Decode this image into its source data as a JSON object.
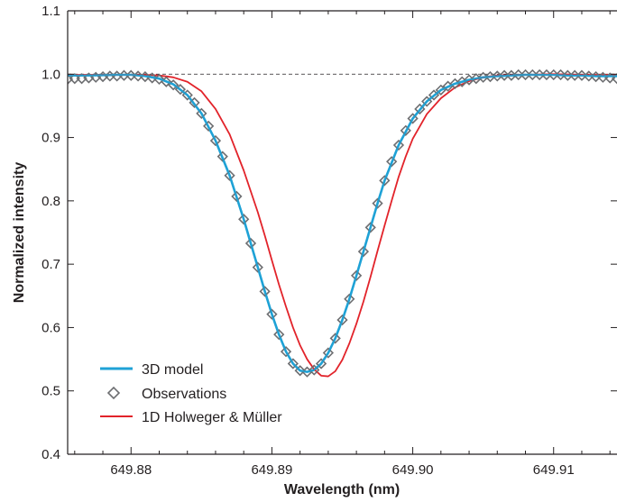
{
  "chart_data": {
    "type": "line",
    "xlabel": "Wavelength (nm)",
    "ylabel": "Normalized intensity",
    "xlim": [
      649.8755,
      649.9145
    ],
    "ylim": [
      0.4,
      1.1
    ],
    "x_ticks": [
      649.88,
      649.89,
      649.9,
      649.91
    ],
    "x_tick_labels": [
      "649.88",
      "649.89",
      "649.90",
      "649.91"
    ],
    "y_ticks": [
      0.4,
      0.5,
      0.6,
      0.7,
      0.8,
      0.9,
      1.0,
      1.1
    ],
    "y_tick_labels": [
      "0.4",
      "0.5",
      "0.6",
      "0.7",
      "0.8",
      "0.9",
      "1.0",
      "1.1"
    ],
    "reference_line": 1.0,
    "grid": false,
    "legend_position": "bottom-left",
    "colors": {
      "model3d": "#1fa2d6",
      "observations": "#6d6e71",
      "holweger": "#e2232a",
      "axis": "#231f20"
    },
    "series": [
      {
        "name": "3D model",
        "style": "line",
        "x": [
          649.8755,
          649.877,
          649.879,
          649.88,
          649.881,
          649.882,
          649.883,
          649.884,
          649.885,
          649.886,
          649.887,
          649.888,
          649.8885,
          649.889,
          649.8895,
          649.89,
          649.8905,
          649.891,
          649.8915,
          649.892,
          649.8925,
          649.893,
          649.8935,
          649.894,
          649.8945,
          649.895,
          649.8955,
          649.896,
          649.8965,
          649.897,
          649.8975,
          649.898,
          649.899,
          649.9,
          649.901,
          649.902,
          649.903,
          649.904,
          649.905,
          649.906,
          649.907,
          649.908,
          649.909,
          649.91,
          649.911,
          649.912,
          649.913,
          649.9145
        ],
        "y": [
          0.998,
          0.998,
          0.999,
          0.999,
          0.997,
          0.993,
          0.984,
          0.967,
          0.938,
          0.895,
          0.84,
          0.771,
          0.733,
          0.695,
          0.657,
          0.621,
          0.589,
          0.562,
          0.543,
          0.532,
          0.53,
          0.533,
          0.543,
          0.56,
          0.583,
          0.612,
          0.645,
          0.682,
          0.72,
          0.758,
          0.796,
          0.832,
          0.888,
          0.93,
          0.957,
          0.975,
          0.985,
          0.991,
          0.995,
          0.997,
          0.998,
          0.999,
          0.999,
          0.999,
          0.998,
          0.998,
          0.997,
          0.997
        ]
      },
      {
        "name": "Observations",
        "style": "markers",
        "x": [
          649.8755,
          649.876,
          649.8765,
          649.877,
          649.8775,
          649.878,
          649.8785,
          649.879,
          649.8795,
          649.88,
          649.8805,
          649.881,
          649.8815,
          649.882,
          649.8825,
          649.883,
          649.8835,
          649.884,
          649.8845,
          649.885,
          649.8855,
          649.886,
          649.8865,
          649.887,
          649.8875,
          649.888,
          649.8885,
          649.889,
          649.8895,
          649.89,
          649.8905,
          649.891,
          649.8915,
          649.892,
          649.8925,
          649.893,
          649.8935,
          649.894,
          649.8945,
          649.895,
          649.8955,
          649.896,
          649.8965,
          649.897,
          649.8975,
          649.898,
          649.8985,
          649.899,
          649.8995,
          649.9,
          649.9005,
          649.901,
          649.9015,
          649.902,
          649.9025,
          649.903,
          649.9035,
          649.904,
          649.9045,
          649.905,
          649.9055,
          649.906,
          649.9065,
          649.907,
          649.9075,
          649.908,
          649.9085,
          649.909,
          649.9095,
          649.91,
          649.9105,
          649.911,
          649.9115,
          649.912,
          649.9125,
          649.913,
          649.9135,
          649.914,
          649.9145
        ],
        "y": [
          0.992,
          0.993,
          0.993,
          0.994,
          0.995,
          0.996,
          0.997,
          0.997,
          0.998,
          0.998,
          0.997,
          0.996,
          0.994,
          0.992,
          0.988,
          0.983,
          0.976,
          0.967,
          0.955,
          0.938,
          0.918,
          0.895,
          0.87,
          0.84,
          0.807,
          0.771,
          0.733,
          0.695,
          0.657,
          0.621,
          0.589,
          0.562,
          0.543,
          0.532,
          0.53,
          0.533,
          0.543,
          0.56,
          0.583,
          0.612,
          0.645,
          0.682,
          0.72,
          0.758,
          0.796,
          0.832,
          0.862,
          0.888,
          0.911,
          0.93,
          0.945,
          0.957,
          0.967,
          0.975,
          0.981,
          0.985,
          0.988,
          0.991,
          0.993,
          0.995,
          0.996,
          0.997,
          0.998,
          0.998,
          0.999,
          0.999,
          0.999,
          0.999,
          0.999,
          0.999,
          0.999,
          0.998,
          0.998,
          0.998,
          0.997,
          0.996,
          0.995,
          0.994,
          0.993
        ]
      },
      {
        "name": "1D Holweger & Müller",
        "style": "line",
        "x": [
          649.8755,
          649.877,
          649.879,
          649.88,
          649.881,
          649.882,
          649.883,
          649.884,
          649.885,
          649.886,
          649.887,
          649.888,
          649.889,
          649.8895,
          649.89,
          649.8905,
          649.891,
          649.8915,
          649.892,
          649.8925,
          649.893,
          649.8935,
          649.894,
          649.8945,
          649.895,
          649.8955,
          649.896,
          649.8965,
          649.897,
          649.8975,
          649.898,
          649.8985,
          649.899,
          649.8995,
          649.9,
          649.901,
          649.902,
          649.903,
          649.904,
          649.905,
          649.906,
          649.908,
          649.91,
          649.912,
          649.914,
          649.9145
        ],
        "y": [
          0.999,
          0.999,
          0.999,
          0.999,
          0.999,
          0.998,
          0.995,
          0.988,
          0.973,
          0.945,
          0.905,
          0.848,
          0.782,
          0.745,
          0.706,
          0.668,
          0.633,
          0.6,
          0.572,
          0.55,
          0.534,
          0.524,
          0.523,
          0.531,
          0.549,
          0.575,
          0.606,
          0.641,
          0.68,
          0.721,
          0.761,
          0.8,
          0.838,
          0.87,
          0.898,
          0.937,
          0.962,
          0.979,
          0.989,
          0.995,
          0.998,
          0.999,
          1.0,
          0.999,
          0.999,
          0.999
        ]
      }
    ]
  }
}
